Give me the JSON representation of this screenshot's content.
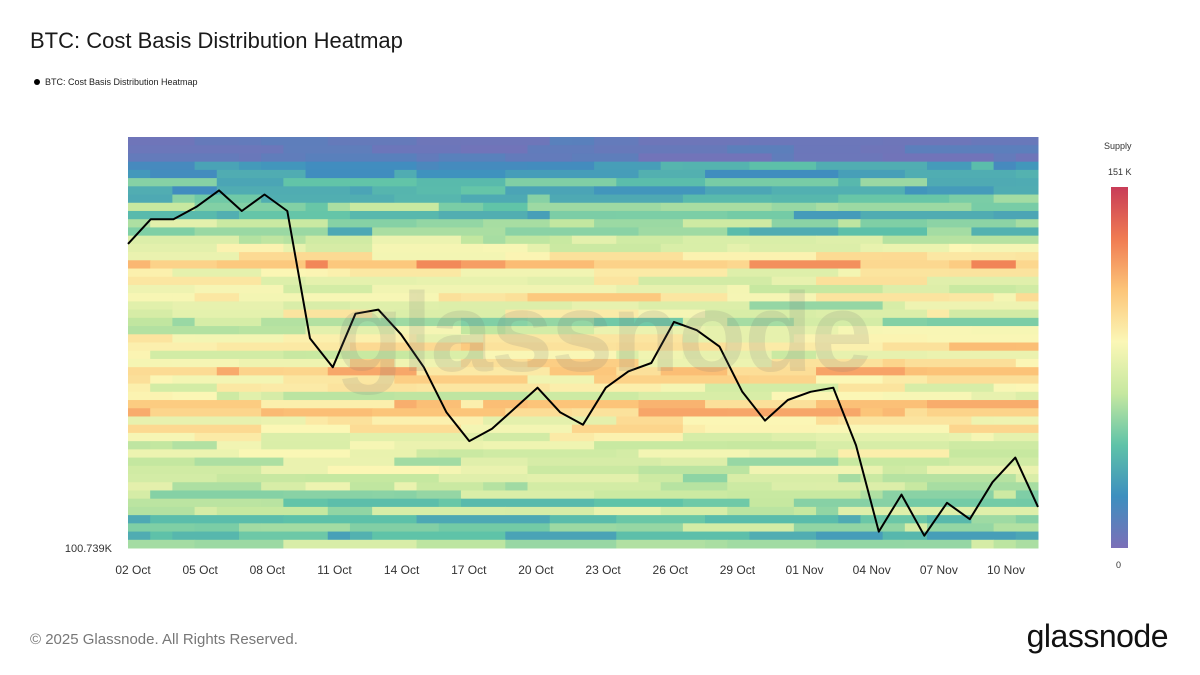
{
  "title": "BTC: Cost Basis Distribution Heatmap",
  "legend_label": "BTC: Cost Basis Distribution Heatmap",
  "copyright": "© 2025 Glassnode. All Rights Reserved.",
  "brand": "glassnode",
  "watermark": "glassnode",
  "colorbar": {
    "title": "Supply",
    "max_label": "151 K",
    "min_label": "0",
    "colors": [
      "#7b6fb8",
      "#3d8fbf",
      "#5fc3a8",
      "#c6e8a0",
      "#fbf7b6",
      "#fcc579",
      "#f07b52",
      "#c83c58"
    ]
  },
  "chart_data": {
    "type": "heatmap",
    "title": "BTC: Cost Basis Distribution Heatmap",
    "series": [
      {
        "name": "BTC: Cost Basis Distribution Heatmap",
        "values": [
          0.74,
          0.8,
          0.8,
          0.83,
          0.87,
          0.82,
          0.86,
          0.82,
          0.51,
          0.44,
          0.57,
          0.58,
          0.52,
          0.44,
          0.33,
          0.26,
          0.29,
          0.34,
          0.39,
          0.33,
          0.3,
          0.39,
          0.43,
          0.45,
          0.55,
          0.53,
          0.49,
          0.38,
          0.31,
          0.36,
          0.38,
          0.39,
          0.25,
          0.04,
          0.13,
          0.03,
          0.11,
          0.07,
          0.16,
          0.22,
          0.1
        ]
      }
    ],
    "x_ticks": [
      "02 Oct",
      "05 Oct",
      "08 Oct",
      "11 Oct",
      "14 Oct",
      "17 Oct",
      "20 Oct",
      "23 Oct",
      "26 Oct",
      "29 Oct",
      "01 Nov",
      "04 Nov",
      "07 Nov",
      "10 Nov"
    ],
    "y_min_label": "100.739K",
    "colorbar_range": [
      0,
      151000
    ],
    "heatmap_bands": [
      {
        "v": 0.05
      },
      {
        "v": 0.08
      },
      {
        "v": 0.12
      },
      {
        "v": 0.2
      },
      {
        "v": 0.15
      },
      {
        "v": 0.28
      },
      {
        "v": 0.22
      },
      {
        "v": 0.3
      },
      {
        "v": 0.35
      },
      {
        "v": 0.25
      },
      {
        "v": 0.42
      },
      {
        "v": 0.3
      },
      {
        "v": 0.45
      },
      {
        "v": 0.52
      },
      {
        "v": 0.6
      },
      {
        "v": 0.75
      },
      {
        "v": 0.58
      },
      {
        "v": 0.55
      },
      {
        "v": 0.5
      },
      {
        "v": 0.62
      },
      {
        "v": 0.45
      },
      {
        "v": 0.55
      },
      {
        "v": 0.4
      },
      {
        "v": 0.48
      },
      {
        "v": 0.58
      },
      {
        "v": 0.65
      },
      {
        "v": 0.52
      },
      {
        "v": 0.6
      },
      {
        "v": 0.7
      },
      {
        "v": 0.62
      },
      {
        "v": 0.55
      },
      {
        "v": 0.5
      },
      {
        "v": 0.68
      },
      {
        "v": 0.72
      },
      {
        "v": 0.58
      },
      {
        "v": 0.62
      },
      {
        "v": 0.55
      },
      {
        "v": 0.48
      },
      {
        "v": 0.52
      },
      {
        "v": 0.45
      },
      {
        "v": 0.5
      },
      {
        "v": 0.42
      },
      {
        "v": 0.46
      },
      {
        "v": 0.4
      },
      {
        "v": 0.35
      },
      {
        "v": 0.44
      },
      {
        "v": 0.3
      },
      {
        "v": 0.38
      },
      {
        "v": 0.25
      },
      {
        "v": 0.4
      }
    ]
  }
}
